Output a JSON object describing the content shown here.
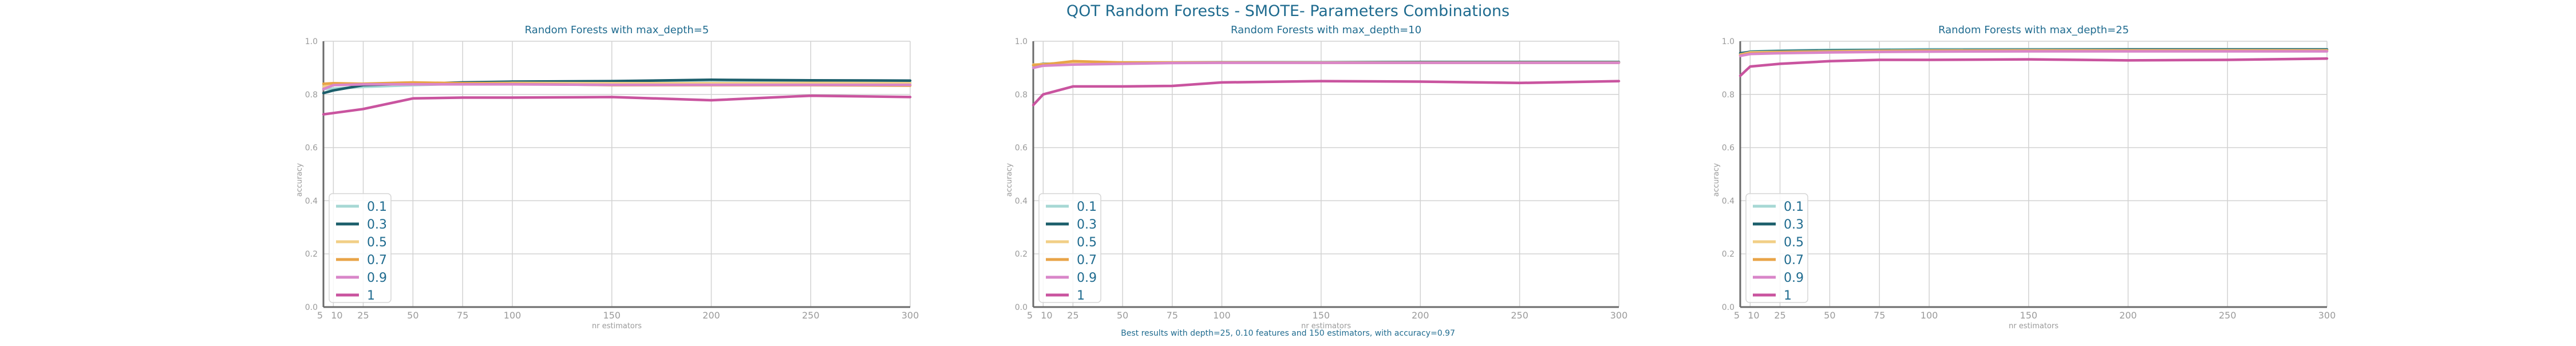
{
  "figure": {
    "title": "QOT Random Forests - SMOTE- Parameters Combinations",
    "footnote": "Best results with depth=25, 0.10 features and 150 estimators, with accuracy=0.97"
  },
  "chart_data": [
    {
      "type": "line",
      "title": "Random Forests with max_depth=5",
      "xlabel": "nr estimators",
      "ylabel": "accuracy",
      "x": [
        5,
        10,
        25,
        50,
        75,
        100,
        150,
        200,
        250,
        300
      ],
      "xticks": [
        5,
        10,
        25,
        50,
        75,
        100,
        150,
        200,
        250,
        300
      ],
      "xticklabels": [
        "5",
        "10",
        "25",
        "50",
        "75",
        "100",
        "150",
        "200",
        "250",
        "300"
      ],
      "xlim": [
        5,
        300
      ],
      "ylim": [
        0,
        1
      ],
      "yticks": [
        0,
        0.2,
        0.4,
        0.6,
        0.8,
        1
      ],
      "yticklabels": [
        "0.0",
        "0.2",
        "0.4",
        "0.6",
        "0.8",
        "1.0"
      ],
      "grid": true,
      "legend": "lower-left",
      "series": [
        {
          "name": "0.1",
          "color": "#a6d8d4",
          "values": [
            0.82,
            0.822,
            0.828,
            0.835,
            0.84,
            0.842,
            0.843,
            0.844,
            0.845,
            0.845
          ]
        },
        {
          "name": "0.3",
          "color": "#1b5e6b",
          "values": [
            0.805,
            0.815,
            0.835,
            0.84,
            0.845,
            0.848,
            0.85,
            0.855,
            0.853,
            0.852
          ]
        },
        {
          "name": "0.5",
          "color": "#f2cf86",
          "values": [
            0.83,
            0.838,
            0.84,
            0.84,
            0.842,
            0.843,
            0.842,
            0.842,
            0.843,
            0.842
          ]
        },
        {
          "name": "0.7",
          "color": "#e8a447",
          "values": [
            0.84,
            0.842,
            0.84,
            0.845,
            0.842,
            0.84,
            0.835,
            0.835,
            0.835,
            0.833
          ]
        },
        {
          "name": "0.9",
          "color": "#d986c9",
          "values": [
            0.82,
            0.835,
            0.838,
            0.838,
            0.838,
            0.838,
            0.836,
            0.836,
            0.836,
            0.836
          ]
        },
        {
          "name": "1",
          "color": "#c9549f",
          "values": [
            0.725,
            0.73,
            0.745,
            0.785,
            0.788,
            0.788,
            0.79,
            0.778,
            0.795,
            0.79
          ]
        }
      ]
    },
    {
      "type": "line",
      "title": "Random Forests with max_depth=10",
      "xlabel": "nr estimators",
      "ylabel": "accuracy",
      "x": [
        5,
        10,
        25,
        50,
        75,
        100,
        150,
        200,
        250,
        300
      ],
      "xticks": [
        5,
        10,
        25,
        50,
        75,
        100,
        150,
        200,
        250,
        300
      ],
      "xticklabels": [
        "5",
        "10",
        "25",
        "50",
        "75",
        "100",
        "150",
        "200",
        "250",
        "300"
      ],
      "xlim": [
        5,
        300
      ],
      "ylim": [
        0,
        1
      ],
      "yticks": [
        0,
        0.2,
        0.4,
        0.6,
        0.8,
        1
      ],
      "yticklabels": [
        "0.0",
        "0.2",
        "0.4",
        "0.6",
        "0.8",
        "1.0"
      ],
      "grid": true,
      "legend": "lower-left",
      "series": [
        {
          "name": "0.1",
          "color": "#a6d8d4",
          "values": [
            0.905,
            0.91,
            0.915,
            0.918,
            0.919,
            0.92,
            0.92,
            0.921,
            0.921,
            0.921
          ]
        },
        {
          "name": "0.3",
          "color": "#1b5e6b",
          "values": [
            0.91,
            0.915,
            0.917,
            0.92,
            0.92,
            0.921,
            0.921,
            0.922,
            0.922,
            0.922
          ]
        },
        {
          "name": "0.5",
          "color": "#f2cf86",
          "values": [
            0.912,
            0.914,
            0.92,
            0.92,
            0.92,
            0.92,
            0.92,
            0.92,
            0.92,
            0.92
          ]
        },
        {
          "name": "0.7",
          "color": "#e8a447",
          "values": [
            0.91,
            0.912,
            0.925,
            0.92,
            0.92,
            0.92,
            0.919,
            0.919,
            0.919,
            0.919
          ]
        },
        {
          "name": "0.9",
          "color": "#d986c9",
          "values": [
            0.9,
            0.908,
            0.912,
            0.915,
            0.918,
            0.919,
            0.919,
            0.919,
            0.919,
            0.919
          ]
        },
        {
          "name": "1",
          "color": "#c9549f",
          "values": [
            0.76,
            0.8,
            0.83,
            0.83,
            0.832,
            0.845,
            0.85,
            0.848,
            0.843,
            0.85
          ]
        }
      ]
    },
    {
      "type": "line",
      "title": "Random Forests with max_depth=25",
      "xlabel": "nr estimators",
      "ylabel": "accuracy",
      "x": [
        5,
        10,
        25,
        50,
        75,
        100,
        150,
        200,
        250,
        300
      ],
      "xticks": [
        5,
        10,
        25,
        50,
        75,
        100,
        150,
        200,
        250,
        300
      ],
      "xticklabels": [
        "5",
        "10",
        "25",
        "50",
        "75",
        "100",
        "150",
        "200",
        "250",
        "300"
      ],
      "xlim": [
        5,
        300
      ],
      "ylim": [
        0,
        1
      ],
      "yticks": [
        0,
        0.2,
        0.4,
        0.6,
        0.8,
        1
      ],
      "yticklabels": [
        "0.0",
        "0.2",
        "0.4",
        "0.6",
        "0.8",
        "1.0"
      ],
      "grid": true,
      "legend": "lower-left",
      "series": [
        {
          "name": "0.1",
          "color": "#a6d8d4",
          "values": [
            0.95,
            0.962,
            0.965,
            0.968,
            0.969,
            0.97,
            0.97,
            0.97,
            0.97,
            0.97
          ]
        },
        {
          "name": "0.3",
          "color": "#1b5e6b",
          "values": [
            0.955,
            0.96,
            0.963,
            0.965,
            0.966,
            0.967,
            0.968,
            0.969,
            0.969,
            0.969
          ]
        },
        {
          "name": "0.5",
          "color": "#f2cf86",
          "values": [
            0.95,
            0.958,
            0.96,
            0.962,
            0.964,
            0.965,
            0.966,
            0.966,
            0.966,
            0.966
          ]
        },
        {
          "name": "0.7",
          "color": "#e8a447",
          "values": [
            0.948,
            0.955,
            0.958,
            0.96,
            0.962,
            0.963,
            0.964,
            0.964,
            0.964,
            0.964
          ]
        },
        {
          "name": "0.9",
          "color": "#d986c9",
          "values": [
            0.945,
            0.952,
            0.955,
            0.958,
            0.96,
            0.961,
            0.962,
            0.962,
            0.962,
            0.962
          ]
        },
        {
          "name": "1",
          "color": "#c9549f",
          "values": [
            0.87,
            0.905,
            0.915,
            0.925,
            0.93,
            0.93,
            0.932,
            0.928,
            0.93,
            0.935
          ]
        }
      ]
    }
  ]
}
